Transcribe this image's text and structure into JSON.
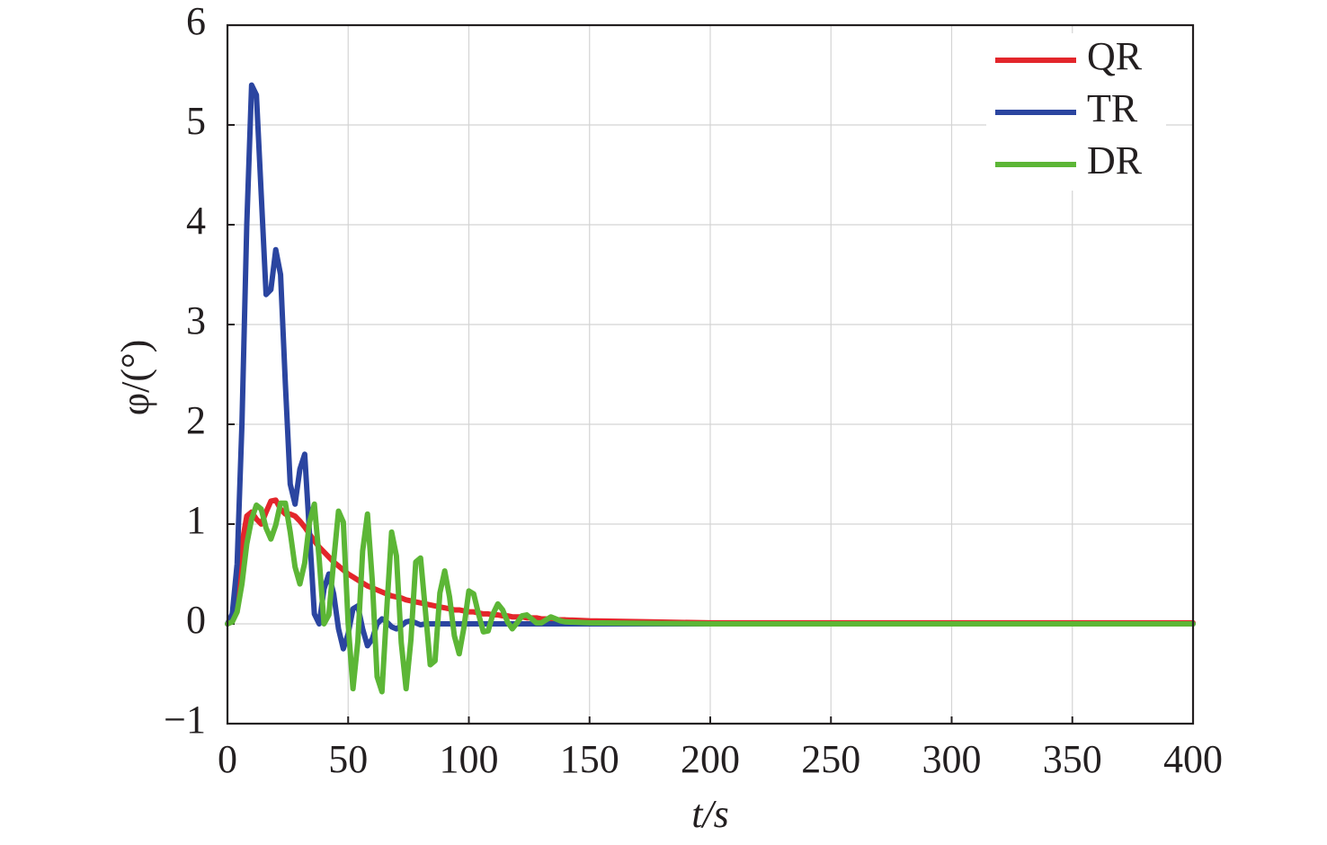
{
  "chart_data": {
    "type": "line",
    "xlabel": "t/s",
    "ylabel": "φ/(°)",
    "x": [
      0,
      2,
      4,
      6,
      8,
      10,
      12,
      14,
      16,
      18,
      20,
      22,
      24,
      26,
      28,
      30,
      32,
      34,
      36,
      38,
      40,
      42,
      44,
      46,
      48,
      50,
      52,
      54,
      56,
      58,
      60,
      62,
      64,
      66,
      68,
      70,
      72,
      74,
      76,
      78,
      80,
      82,
      84,
      86,
      88,
      90,
      92,
      94,
      96,
      98,
      100,
      102,
      104,
      106,
      108,
      110,
      112,
      114,
      116,
      118,
      120,
      122,
      124,
      126,
      128,
      130,
      132,
      134,
      136,
      138,
      140,
      150,
      175,
      200,
      250,
      300,
      350,
      400
    ],
    "series": [
      {
        "name": "QR",
        "color": "#e3262b",
        "values": [
          0,
          0.05,
          0.3,
          0.8,
          1.08,
          1.12,
          1.05,
          1.0,
          1.12,
          1.23,
          1.24,
          1.15,
          1.1,
          1.1,
          1.08,
          1.03,
          0.97,
          0.9,
          0.83,
          0.77,
          0.72,
          0.67,
          0.62,
          0.58,
          0.54,
          0.5,
          0.47,
          0.44,
          0.41,
          0.38,
          0.36,
          0.34,
          0.32,
          0.3,
          0.28,
          0.27,
          0.26,
          0.24,
          0.23,
          0.22,
          0.21,
          0.2,
          0.19,
          0.18,
          0.17,
          0.16,
          0.15,
          0.14,
          0.14,
          0.13,
          0.12,
          0.12,
          0.11,
          0.1,
          0.1,
          0.09,
          0.09,
          0.08,
          0.08,
          0.07,
          0.07,
          0.07,
          0.06,
          0.06,
          0.06,
          0.05,
          0.05,
          0.05,
          0.04,
          0.04,
          0.04,
          0.03,
          0.02,
          0.01,
          0.01,
          0.01,
          0.01,
          0.01
        ]
      },
      {
        "name": "TR",
        "color": "#2b45a0",
        "values": [
          0,
          0.1,
          0.6,
          2.0,
          4.0,
          5.4,
          5.3,
          4.3,
          3.3,
          3.35,
          3.75,
          3.5,
          2.4,
          1.4,
          1.2,
          1.55,
          1.7,
          0.9,
          0.1,
          0.0,
          0.35,
          0.5,
          0.3,
          -0.05,
          -0.25,
          -0.1,
          0.15,
          0.18,
          -0.05,
          -0.22,
          -0.15,
          0.0,
          0.05,
          0.02,
          -0.03,
          -0.05,
          -0.02,
          0.02,
          0.03,
          0.01,
          -0.01,
          0,
          0,
          0,
          0,
          0,
          0,
          0,
          0,
          0,
          0,
          0,
          0,
          0,
          0,
          0,
          0,
          0,
          0,
          0,
          0,
          0,
          0,
          0,
          0,
          0,
          0,
          0,
          0,
          0,
          0,
          0,
          0,
          0,
          0,
          0,
          0,
          0
        ]
      },
      {
        "name": "DR",
        "color": "#5cb636",
        "values": [
          0,
          0.02,
          0.12,
          0.4,
          0.8,
          1.05,
          1.19,
          1.15,
          0.96,
          0.85,
          0.99,
          1.21,
          1.21,
          0.92,
          0.57,
          0.4,
          0.61,
          1.02,
          1.2,
          0.65,
          0.0,
          0.09,
          0.63,
          1.13,
          1.02,
          0.0,
          -0.65,
          -0.18,
          0.73,
          1.1,
          0.43,
          -0.53,
          -0.68,
          0.15,
          0.92,
          0.68,
          -0.19,
          -0.65,
          -0.16,
          0.62,
          0.66,
          0.13,
          -0.41,
          -0.37,
          0.31,
          0.53,
          0.27,
          -0.12,
          -0.3,
          -0.03,
          0.33,
          0.3,
          0.1,
          -0.08,
          -0.07,
          0.1,
          0.2,
          0.14,
          0.02,
          -0.05,
          0.01,
          0.08,
          0.09,
          0.05,
          0.01,
          0.01,
          0.04,
          0.07,
          0.05,
          0.03,
          0.02,
          0.01,
          0.005,
          0,
          0,
          0,
          0,
          0
        ]
      }
    ],
    "xlim": [
      0,
      400
    ],
    "xticks": [
      0,
      50,
      100,
      150,
      200,
      250,
      300,
      350,
      400
    ],
    "ylim": [
      -1,
      6
    ],
    "yticks": [
      {
        "value": -1,
        "label": "−1"
      },
      0,
      1,
      2,
      3,
      4,
      5,
      6
    ],
    "grid": true,
    "legend": "upper right"
  }
}
